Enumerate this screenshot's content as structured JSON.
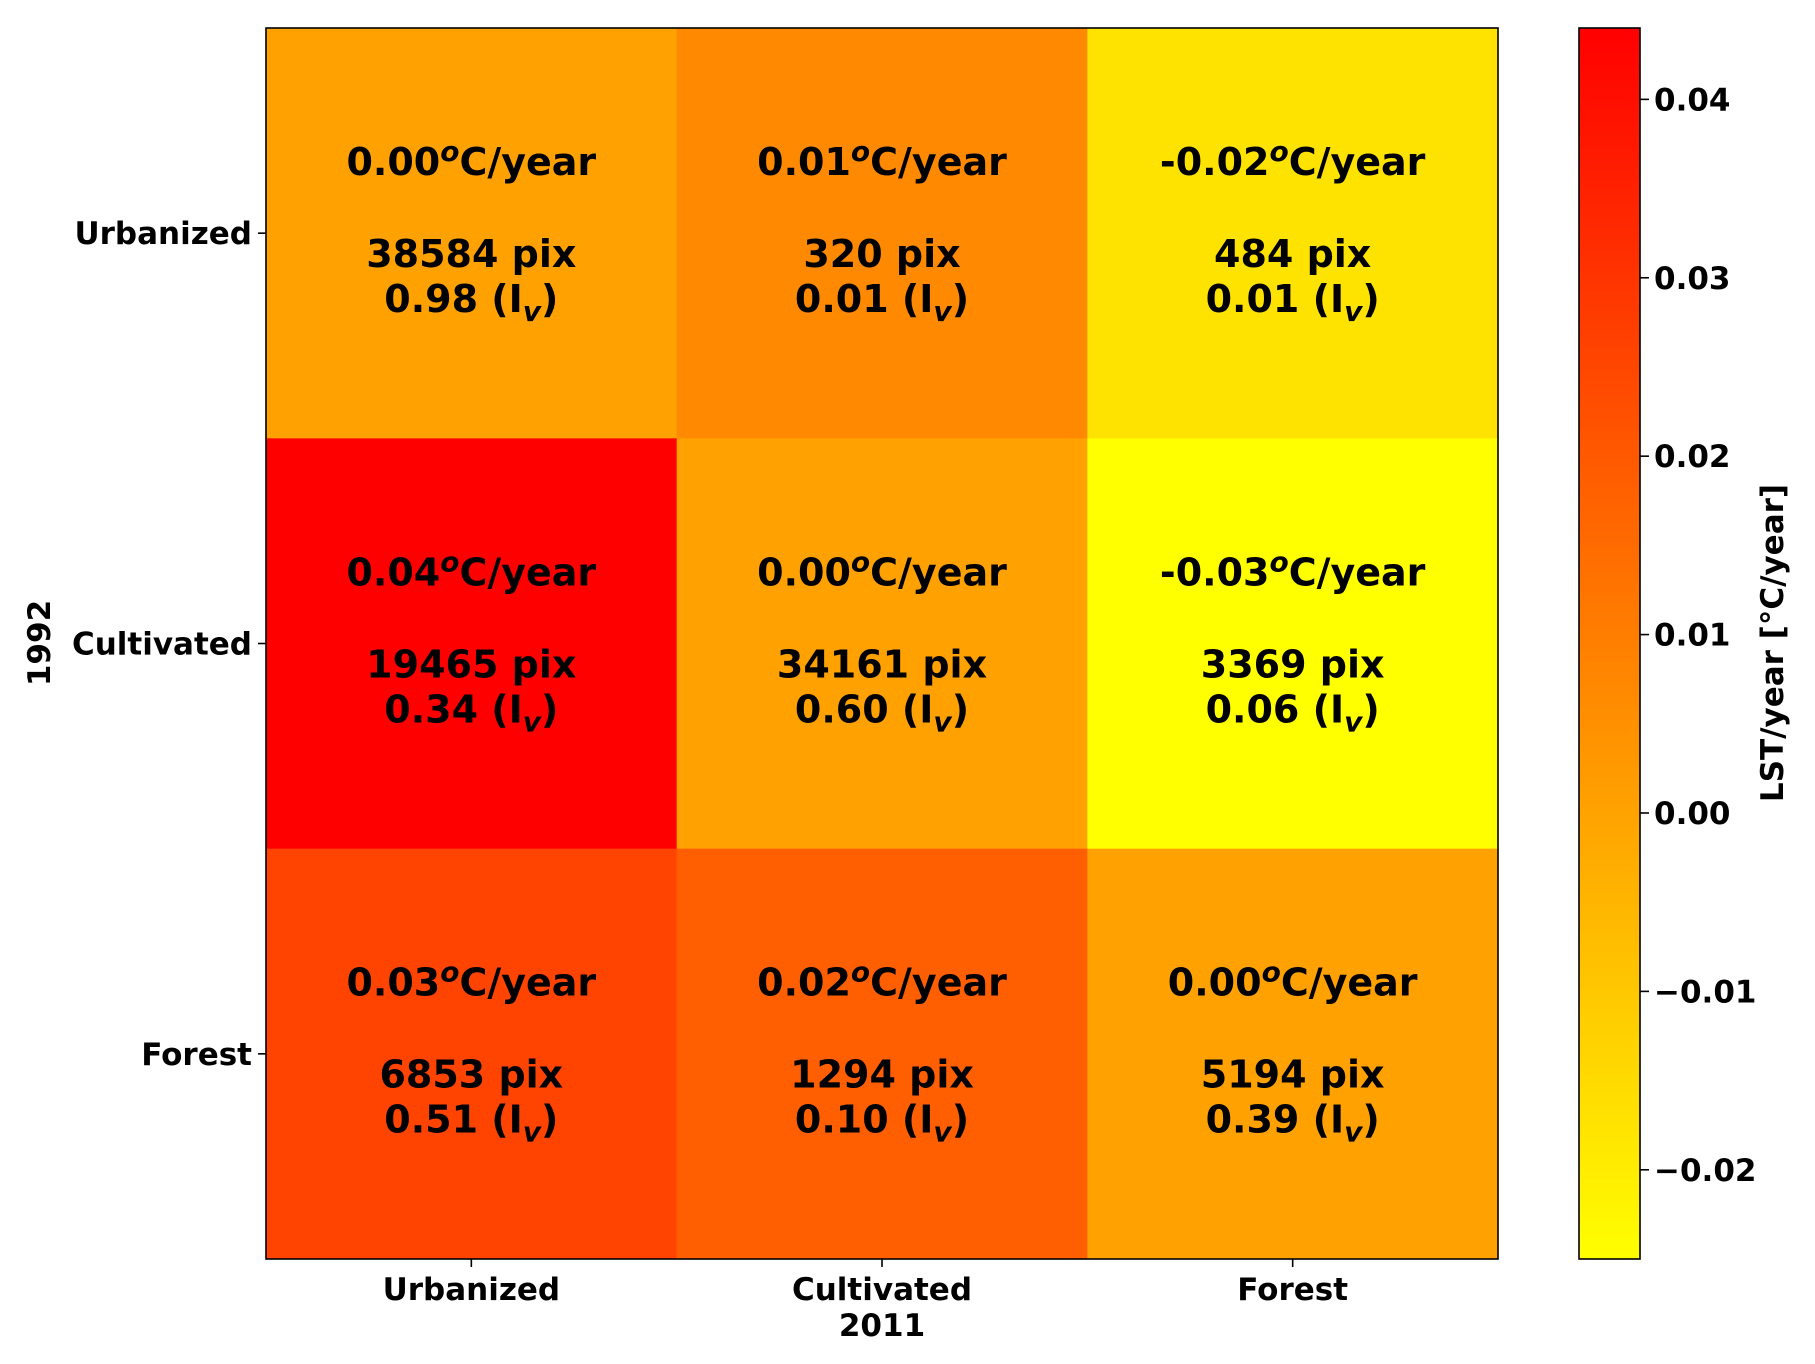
{
  "chart_data": {
    "type": "heatmap",
    "xlabel": "2011",
    "ylabel": "1992",
    "x_categories": [
      "Urbanized",
      "Cultivated",
      "Forest"
    ],
    "y_categories": [
      "Urbanized",
      "Cultivated",
      "Forest"
    ],
    "cells": [
      [
        {
          "value": 0.0,
          "label": "0.00",
          "pix": "38584 pix",
          "iv": "0.98"
        },
        {
          "value": 0.01,
          "label": "0.01",
          "pix": "320 pix",
          "iv": "0.01"
        },
        {
          "value": -0.02,
          "label": "-0.02",
          "pix": "484 pix",
          "iv": "0.01"
        }
      ],
      [
        {
          "value": 0.04,
          "label": "0.04",
          "pix": "19465 pix",
          "iv": "0.34"
        },
        {
          "value": 0.0,
          "label": "0.00",
          "pix": "34161 pix",
          "iv": "0.60"
        },
        {
          "value": -0.03,
          "label": "-0.03",
          "pix": "3369 pix",
          "iv": "0.06"
        }
      ],
      [
        {
          "value": 0.03,
          "label": "0.03",
          "pix": "6853 pix",
          "iv": "0.51"
        },
        {
          "value": 0.02,
          "label": "0.02",
          "pix": "1294 pix",
          "iv": "0.10"
        },
        {
          "value": 0.0,
          "label": "0.00",
          "pix": "5194 pix",
          "iv": "0.39"
        }
      ]
    ],
    "cell_unit": "°C/year",
    "iv_unit": "(I_v)",
    "colorbar": {
      "label": "LST/year [°C/year]",
      "ticks": [
        "0.04",
        "0.03",
        "0.02",
        "0.01",
        "0.00",
        "−0.01",
        "−0.02"
      ],
      "tick_values": [
        0.04,
        0.03,
        0.02,
        0.01,
        0.0,
        -0.01,
        -0.02
      ],
      "vmin": -0.025,
      "vmax": 0.044,
      "colormap": "autumn_r",
      "colors": [
        "#ffff00",
        "#ff0000"
      ]
    },
    "cell_colors": [
      [
        "#ffa100",
        "#ff8900",
        "#ffe300"
      ],
      [
        "#ff0000",
        "#ffa100",
        "#ffff00"
      ],
      [
        "#ff4300",
        "#ff5f00",
        "#ffa100"
      ]
    ]
  }
}
